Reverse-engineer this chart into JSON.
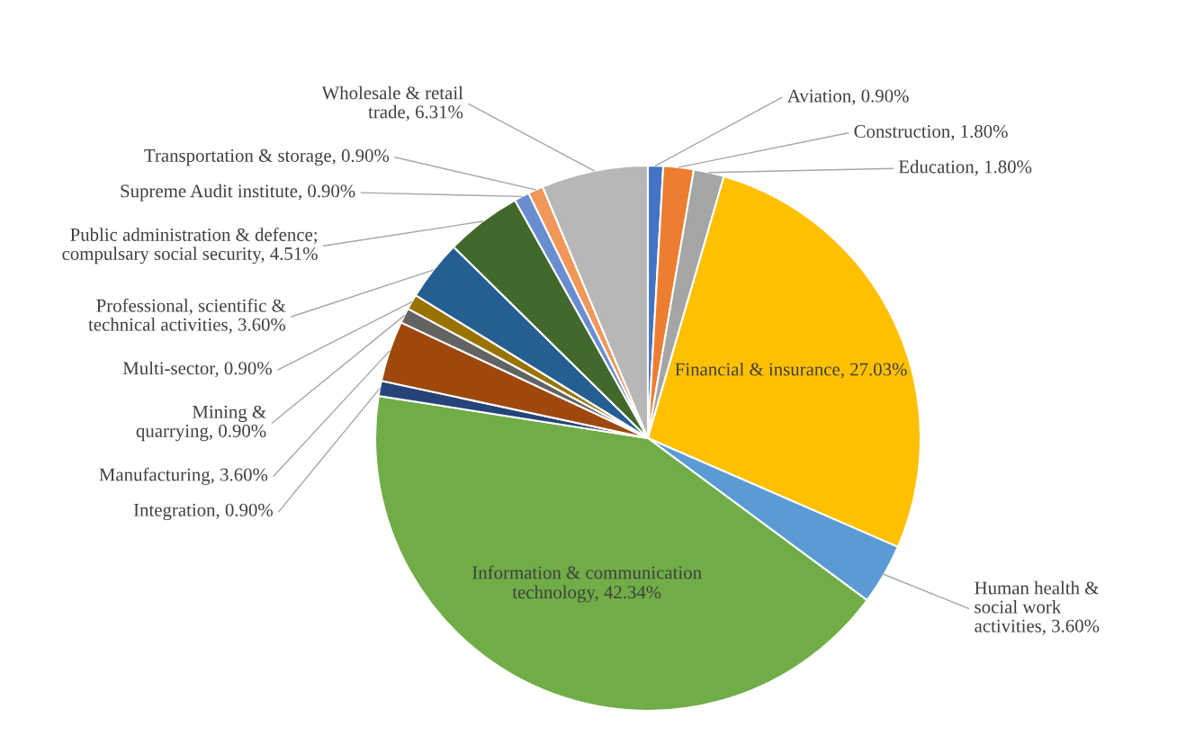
{
  "chart_data": {
    "type": "pie",
    "categories": [
      "Aviation",
      "Construction",
      "Education",
      "Financial & insurance",
      "Human health &\nsocial work\nactivities",
      "Information & communication\ntechnology",
      "Integration",
      "Manufacturing",
      "Mining &\nquarrying",
      "Multi-sector",
      "Professional, scientific &\ntechnical activities",
      "Public administration & defence;\ncompulsary social security",
      "Supreme Audit institute",
      "Transportation & storage",
      "Wholesale & retail\ntrade"
    ],
    "values": [
      0.9,
      1.8,
      1.8,
      27.03,
      3.6,
      42.34,
      0.9,
      3.6,
      0.9,
      0.9,
      3.6,
      4.51,
      0.9,
      0.9,
      6.31
    ],
    "value_labels": [
      "0.90%",
      "1.80%",
      "1.80%",
      "27.03%",
      "3.60%",
      "42.34%",
      "0.90%",
      "3.60%",
      "0.90%",
      "0.90%",
      "3.60%",
      "4.51%",
      "0.90%",
      "0.90%",
      "6.31%"
    ],
    "colors": [
      "#4472c4",
      "#ed7d31",
      "#a5a5a5",
      "#ffc000",
      "#5b9bd5",
      "#70ad47",
      "#264478",
      "#9e480e",
      "#636363",
      "#997300",
      "#255e91",
      "#43682b",
      "#698ed0",
      "#f1975a",
      "#b7b7b7"
    ],
    "legend": false
  }
}
